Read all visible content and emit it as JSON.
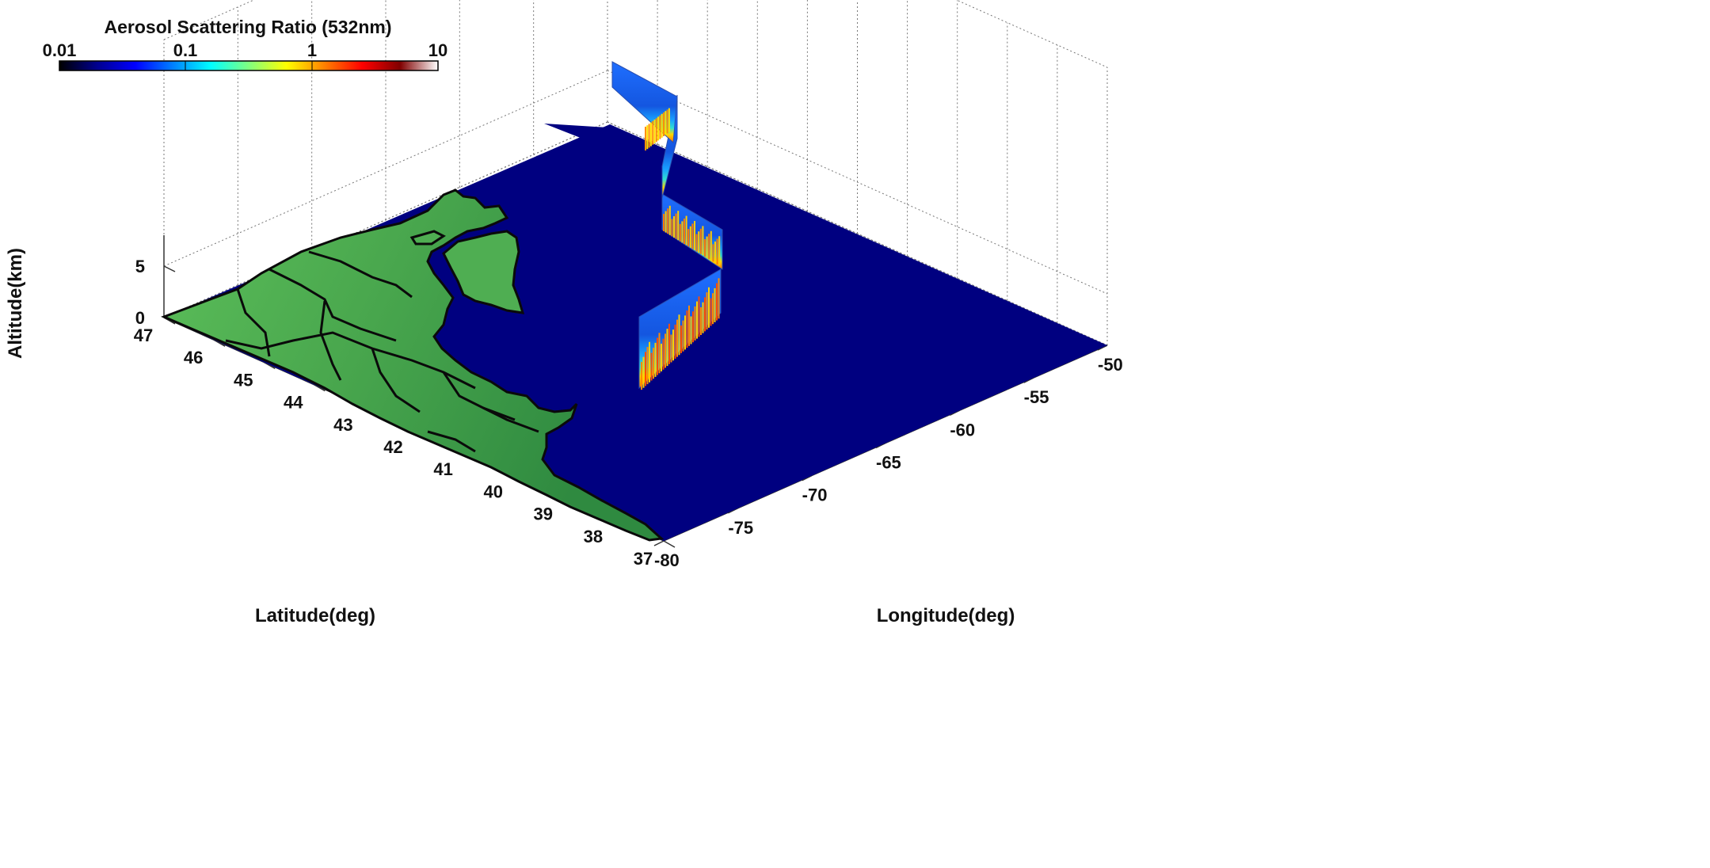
{
  "chart_data": {
    "type": "surface-3d",
    "colorbar": {
      "title": "Aerosol Scattering Ratio (532nm)",
      "scale": "log",
      "range": [
        0.01,
        10
      ],
      "ticks": [
        "0.01",
        "0.1",
        "1",
        "10"
      ],
      "colormap": [
        "#000000",
        "#00008f",
        "#0000ff",
        "#0080ff",
        "#00ffff",
        "#80ff80",
        "#ffff00",
        "#ff8000",
        "#ff0000",
        "#800000",
        "#ffffff"
      ]
    },
    "xlabel": "Longitude(deg)",
    "ylabel": "Latitude(deg)",
    "zlabel": "Altitude(km)",
    "xticks": [
      "-80",
      "-75",
      "-70",
      "-65",
      "-60",
      "-55",
      "-50"
    ],
    "yticks": [
      "37",
      "38",
      "39",
      "40",
      "41",
      "42",
      "43",
      "44",
      "45",
      "46",
      "47"
    ],
    "zticks": [
      "0",
      "5"
    ],
    "xlim": [
      -80,
      -50
    ],
    "ylim": [
      37,
      47
    ],
    "zlim": [
      0,
      8
    ],
    "grid": true,
    "colors": {
      "ocean": "#000080",
      "land_light": "#5cb85c",
      "land_dark": "#1f6b34",
      "coastline": "#0a0a0a"
    },
    "curtain_track": [
      {
        "lon": -55.8,
        "lat": 37.6
      },
      {
        "lon": -57.6,
        "lat": 38.9
      },
      {
        "lon": -59.0,
        "lat": 38.6
      },
      {
        "lon": -61.4,
        "lat": 39.4
      },
      {
        "lon": -62.0,
        "lat": 40.7
      }
    ]
  }
}
